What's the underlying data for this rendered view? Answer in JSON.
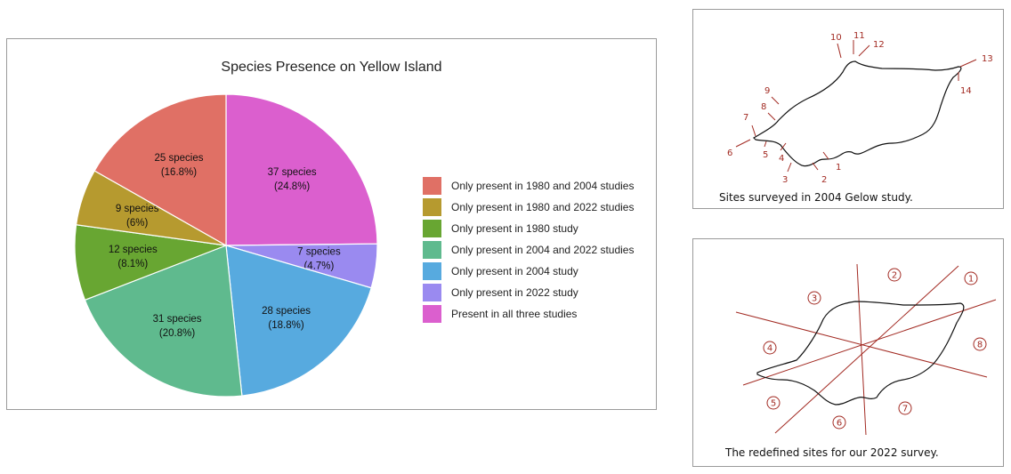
{
  "chart_data": {
    "type": "pie",
    "title": "Species Presence on Yellow Island",
    "legend_position": "right",
    "slices": [
      {
        "name": "Present in all three studies",
        "value": 37,
        "label_count": "37 species",
        "label_pct": "(24.8%)",
        "color": "#db5fce"
      },
      {
        "name": "Only present in 2022 study",
        "value": 7,
        "label_count": "7 species",
        "label_pct": "(4.7%)",
        "color": "#9a8af0"
      },
      {
        "name": "Only present in 2004 study",
        "value": 28,
        "label_count": "28 species",
        "label_pct": "(18.8%)",
        "color": "#57aadf"
      },
      {
        "name": "Only present in 2004 and 2022 studies",
        "value": 31,
        "label_count": "31 species",
        "label_pct": "(20.8%)",
        "color": "#5fba8e"
      },
      {
        "name": "Only present in 1980 study",
        "value": 12,
        "label_count": "12 species",
        "label_pct": "(8.1%)",
        "color": "#68a632"
      },
      {
        "name": "Only present in 1980 and 2022 studies",
        "value": 9,
        "label_count": "9 species",
        "label_pct": "(6%)",
        "color": "#b69a2f"
      },
      {
        "name": "Only present in 1980 and 2004 studies",
        "value": 25,
        "label_count": "25 species",
        "label_pct": "(16.8%)",
        "color": "#e07065"
      }
    ],
    "legend_order": [
      "Only present in 1980 and 2004 studies",
      "Only present in 1980 and 2022 studies",
      "Only present in 1980 study",
      "Only present in 2004 and 2022 studies",
      "Only present in 2004 study",
      "Only present in 2022 study",
      "Present in all three studies"
    ]
  },
  "map_2004": {
    "caption": "Sites surveyed in 2004 Gelow study.",
    "site_numbers": [
      "1",
      "2",
      "3",
      "4",
      "5",
      "6",
      "7",
      "8",
      "9",
      "10",
      "11",
      "12",
      "13",
      "14"
    ]
  },
  "map_2022": {
    "caption": "The redefined sites for our 2022 survey.",
    "site_numbers": [
      "1",
      "2",
      "3",
      "4",
      "5",
      "6",
      "7",
      "8"
    ]
  },
  "colors": {
    "annotation": "#a22a22",
    "outline": "#111111"
  }
}
